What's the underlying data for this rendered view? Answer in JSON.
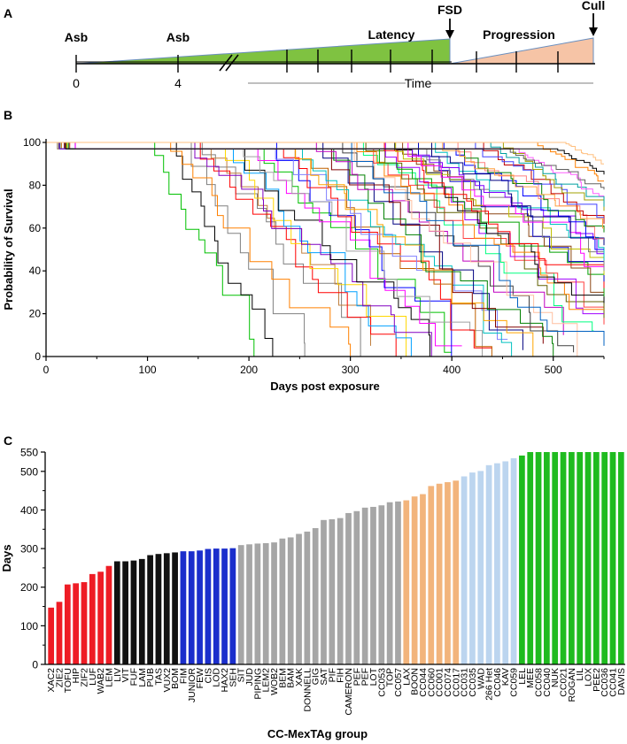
{
  "panels": {
    "a": {
      "letter": "A",
      "labels": {
        "asb1": "Asb",
        "asb2": "Asb",
        "latency": "Latency",
        "fsd": "FSD",
        "progression": "Progression",
        "cull": "Cull",
        "tick0": "0",
        "tick4": "4",
        "time": "Time"
      },
      "colors": {
        "latency": "#7fc241",
        "progression": "#f6c4a6",
        "outline": "#6a8fbf"
      }
    },
    "b": {
      "letter": "B"
    },
    "c": {
      "letter": "C"
    }
  },
  "chart_data": [
    {
      "type": "line",
      "subtype": "kaplan-meier step curves",
      "title": "",
      "xlabel": "Days post exposure",
      "ylabel": "Probability of Survival",
      "xlim": [
        0,
        550
      ],
      "ylim": [
        0,
        100
      ],
      "xticks": [
        0,
        100,
        200,
        300,
        400,
        500
      ],
      "yticks": [
        0,
        20,
        40,
        60,
        80,
        100
      ],
      "xtick_labels": [
        "0",
        "100",
        "200",
        "300",
        "400",
        "500"
      ],
      "ytick_labels": [
        "0",
        "20",
        "40",
        "60",
        "80",
        "100"
      ],
      "curve_count": 56,
      "note": "Many overlapping colored survival curves; approximated by onset day, end day and final survival %",
      "series": [
        {
          "start": 100,
          "end": 205,
          "final": 0,
          "color": "#00c000"
        },
        {
          "start": 120,
          "end": 225,
          "final": 0,
          "color": "#000000"
        },
        {
          "start": 130,
          "end": 255,
          "final": 0,
          "color": "#808080"
        },
        {
          "start": 110,
          "end": 300,
          "final": 0,
          "color": "#ff8000"
        },
        {
          "start": 140,
          "end": 310,
          "final": 0,
          "color": "#808080"
        },
        {
          "start": 150,
          "end": 320,
          "final": 5,
          "color": "#c08040"
        },
        {
          "start": 140,
          "end": 345,
          "final": 0,
          "color": "#ff0000"
        },
        {
          "start": 160,
          "end": 355,
          "final": 0,
          "color": "#ffd700"
        },
        {
          "start": 170,
          "end": 360,
          "final": 0,
          "color": "#00a0ff"
        },
        {
          "start": 130,
          "end": 380,
          "final": 0,
          "color": "#8000c0"
        },
        {
          "start": 180,
          "end": 395,
          "final": 0,
          "color": "#000000"
        },
        {
          "start": 200,
          "end": 400,
          "final": 2,
          "color": "#00c000"
        },
        {
          "start": 190,
          "end": 410,
          "final": 5,
          "color": "#ff00ff"
        },
        {
          "start": 210,
          "end": 420,
          "final": 0,
          "color": "#0000ff"
        },
        {
          "start": 180,
          "end": 430,
          "final": 0,
          "color": "#a0a0a0"
        },
        {
          "start": 220,
          "end": 440,
          "final": 4,
          "color": "#ff0000"
        },
        {
          "start": 230,
          "end": 450,
          "final": 0,
          "color": "#c06000"
        },
        {
          "start": 200,
          "end": 455,
          "final": 8,
          "color": "#8080ff"
        },
        {
          "start": 240,
          "end": 460,
          "final": 0,
          "color": "#00c0c0"
        },
        {
          "start": 250,
          "end": 470,
          "final": 3,
          "color": "#000080"
        },
        {
          "start": 230,
          "end": 480,
          "final": 0,
          "color": "#ffa500"
        },
        {
          "start": 260,
          "end": 490,
          "final": 6,
          "color": "#800000"
        },
        {
          "start": 270,
          "end": 500,
          "final": 0,
          "color": "#008000"
        },
        {
          "start": 250,
          "end": 510,
          "final": 10,
          "color": "#c000c0"
        },
        {
          "start": 280,
          "end": 520,
          "final": 2,
          "color": "#404040"
        },
        {
          "start": 290,
          "end": 530,
          "final": 0,
          "color": "#ffc0a0"
        },
        {
          "start": 300,
          "end": 540,
          "final": 12,
          "color": "#00ff80"
        },
        {
          "start": 280,
          "end": 550,
          "final": 5,
          "color": "#0060c0"
        },
        {
          "start": 310,
          "end": 550,
          "final": 15,
          "color": "#ff4040"
        },
        {
          "start": 300,
          "end": 550,
          "final": 18,
          "color": "#606000"
        },
        {
          "start": 320,
          "end": 550,
          "final": 20,
          "color": "#a000ff"
        },
        {
          "start": 290,
          "end": 550,
          "final": 22,
          "color": "#ff8000"
        },
        {
          "start": 330,
          "end": 550,
          "final": 25,
          "color": "#000000"
        },
        {
          "start": 310,
          "end": 550,
          "final": 28,
          "color": "#00a000"
        },
        {
          "start": 340,
          "end": 550,
          "final": 30,
          "color": "#8b4513"
        },
        {
          "start": 320,
          "end": 550,
          "final": 32,
          "color": "#ff0000"
        },
        {
          "start": 350,
          "end": 550,
          "final": 35,
          "color": "#0000c0"
        },
        {
          "start": 330,
          "end": 550,
          "final": 38,
          "color": "#c0c000"
        },
        {
          "start": 360,
          "end": 550,
          "final": 40,
          "color": "#808080"
        },
        {
          "start": 340,
          "end": 550,
          "final": 42,
          "color": "#ff00ff"
        },
        {
          "start": 370,
          "end": 550,
          "final": 45,
          "color": "#00c0c0"
        },
        {
          "start": 350,
          "end": 550,
          "final": 48,
          "color": "#8000ff"
        },
        {
          "start": 380,
          "end": 550,
          "final": 50,
          "color": "#0000ff"
        },
        {
          "start": 360,
          "end": 550,
          "final": 52,
          "color": "#000080"
        },
        {
          "start": 390,
          "end": 550,
          "final": 55,
          "color": "#ff8080"
        },
        {
          "start": 400,
          "end": 550,
          "final": 58,
          "color": "#008000"
        },
        {
          "start": 380,
          "end": 550,
          "final": 60,
          "color": "#ffa040"
        },
        {
          "start": 420,
          "end": 550,
          "final": 62,
          "color": "#c00000"
        },
        {
          "start": 410,
          "end": 550,
          "final": 65,
          "color": "#4040ff"
        },
        {
          "start": 440,
          "end": 550,
          "final": 68,
          "color": "#a0a000"
        },
        {
          "start": 430,
          "end": 550,
          "final": 70,
          "color": "#00a0a0"
        },
        {
          "start": 460,
          "end": 550,
          "final": 75,
          "color": "#ff60ff"
        },
        {
          "start": 450,
          "end": 550,
          "final": 78,
          "color": "#606060"
        },
        {
          "start": 480,
          "end": 550,
          "final": 82,
          "color": "#ff8000"
        },
        {
          "start": 500,
          "end": 550,
          "final": 85,
          "color": "#000000"
        },
        {
          "start": 510,
          "end": 550,
          "final": 90,
          "color": "#ffc080"
        }
      ]
    },
    {
      "type": "bar",
      "title": "",
      "xlabel": "CC-MexTAg group",
      "ylabel": "Days",
      "ylim": [
        0,
        550
      ],
      "yticks": [
        0,
        100,
        200,
        300,
        400,
        500,
        550
      ],
      "ytick_labels": [
        "0",
        "100",
        "200",
        "300",
        "400",
        "500",
        "550"
      ],
      "categories": [
        "XAC2",
        "ZIE2",
        "TOFU",
        "HIP",
        "ZIF2",
        "LUF",
        "WAB2",
        "LEM",
        "LIV",
        "VIT",
        "FUF",
        "LAM",
        "PUB",
        "TAS",
        "VUX2",
        "BOM",
        "FIM",
        "JUNIOR",
        "FEW",
        "CIS",
        "LOD",
        "HAX2",
        "SEH",
        "SIT",
        "JUD",
        "PIPING",
        "LEM2",
        "WOB2",
        "BEM",
        "BAM",
        "XAK",
        "DONNELL",
        "GIG",
        "SAT",
        "PIF",
        "FIH",
        "CAMERON",
        "PEF",
        "PEF",
        "LOT",
        "CC053",
        "TOP",
        "CC057",
        "LAX",
        "BOON",
        "CC044",
        "CC060",
        "CC001",
        "CC074",
        "CC017",
        "CC031",
        "CC035",
        "WAD",
        "266 Het",
        "CC046",
        "KAV",
        "CC059",
        "LEL",
        "MEE",
        "CC058",
        "CC040",
        "NUK",
        "CC021",
        "ROGAN",
        "LIL",
        "LOX",
        "PEE2",
        "CC036",
        "CC041",
        "DAVIS"
      ],
      "values": [
        147,
        162,
        207,
        210,
        213,
        234,
        240,
        255,
        267,
        267,
        269,
        273,
        283,
        286,
        288,
        290,
        293,
        293,
        295,
        299,
        300,
        300,
        301,
        309,
        311,
        313,
        314,
        316,
        326,
        329,
        338,
        344,
        353,
        374,
        376,
        379,
        392,
        397,
        406,
        408,
        412,
        420,
        422,
        425,
        435,
        441,
        462,
        468,
        472,
        476,
        487,
        497,
        501,
        516,
        521,
        526,
        534,
        541,
        550,
        550,
        550,
        550,
        550,
        550,
        550,
        550,
        550,
        550,
        550,
        550
      ],
      "group_colors": [
        "#ee1c25",
        "#ee1c25",
        "#ee1c25",
        "#ee1c25",
        "#ee1c25",
        "#ee1c25",
        "#ee1c25",
        "#ee1c25",
        "#111111",
        "#111111",
        "#111111",
        "#111111",
        "#111111",
        "#111111",
        "#111111",
        "#111111",
        "#1b2ecc",
        "#1b2ecc",
        "#1b2ecc",
        "#1b2ecc",
        "#1b2ecc",
        "#1b2ecc",
        "#1b2ecc",
        "#a6a6a6",
        "#a6a6a6",
        "#a6a6a6",
        "#a6a6a6",
        "#a6a6a6",
        "#a6a6a6",
        "#a6a6a6",
        "#a6a6a6",
        "#a6a6a6",
        "#a6a6a6",
        "#a6a6a6",
        "#a6a6a6",
        "#a6a6a6",
        "#a6a6a6",
        "#a6a6a6",
        "#a6a6a6",
        "#a6a6a6",
        "#a6a6a6",
        "#a6a6a6",
        "#a6a6a6",
        "#f2b47c",
        "#f2b47c",
        "#f2b47c",
        "#f2b47c",
        "#f2b47c",
        "#f2b47c",
        "#f2b47c",
        "#bcd5ef",
        "#bcd5ef",
        "#bcd5ef",
        "#bcd5ef",
        "#bcd5ef",
        "#bcd5ef",
        "#bcd5ef",
        "#1fbb1f",
        "#1fbb1f",
        "#1fbb1f",
        "#1fbb1f",
        "#1fbb1f",
        "#1fbb1f",
        "#1fbb1f",
        "#1fbb1f",
        "#1fbb1f",
        "#1fbb1f",
        "#1fbb1f",
        "#1fbb1f",
        "#1fbb1f"
      ]
    }
  ]
}
